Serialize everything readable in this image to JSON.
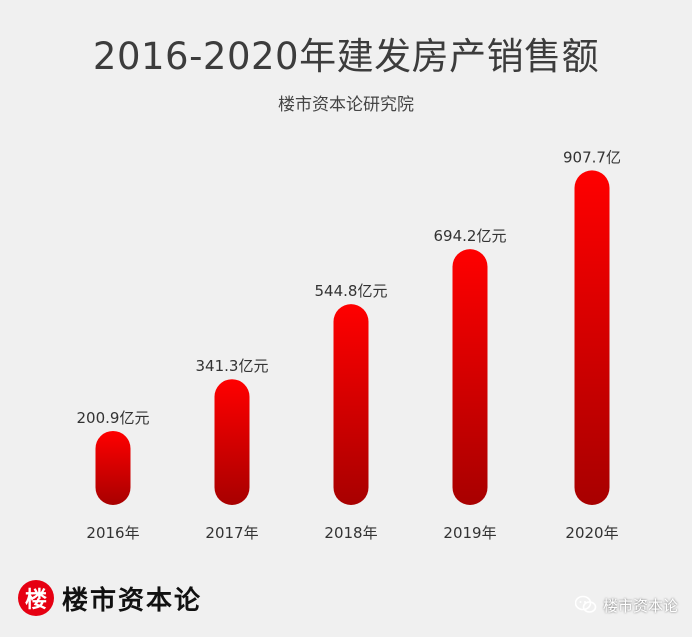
{
  "header": {
    "title": "2016-2020年建发房产销售额",
    "subtitle": "楼市资本论研究院"
  },
  "brand": {
    "logo_char": "楼",
    "name": "楼市资本论",
    "wechat_label": "楼市资本论"
  },
  "colors": {
    "bar_top": "#ff0000",
    "bar_bottom": "#a80000",
    "brand_red": "#e60012"
  },
  "chart_data": {
    "type": "bar",
    "categories": [
      "2016年",
      "2017年",
      "2018年",
      "2019年",
      "2020年"
    ],
    "values": [
      200.9,
      341.3,
      544.8,
      694.2,
      907.7
    ],
    "data_labels": [
      "200.9亿元",
      "341.3亿元",
      "544.8亿元",
      "694.2亿元",
      "907.7亿"
    ],
    "title": "2016-2020年建发房产销售额",
    "subtitle": "楼市资本论研究院",
    "xlabel": "",
    "ylabel": "",
    "ylim": [
      0,
      1000
    ],
    "grid": false,
    "legend": "none"
  }
}
